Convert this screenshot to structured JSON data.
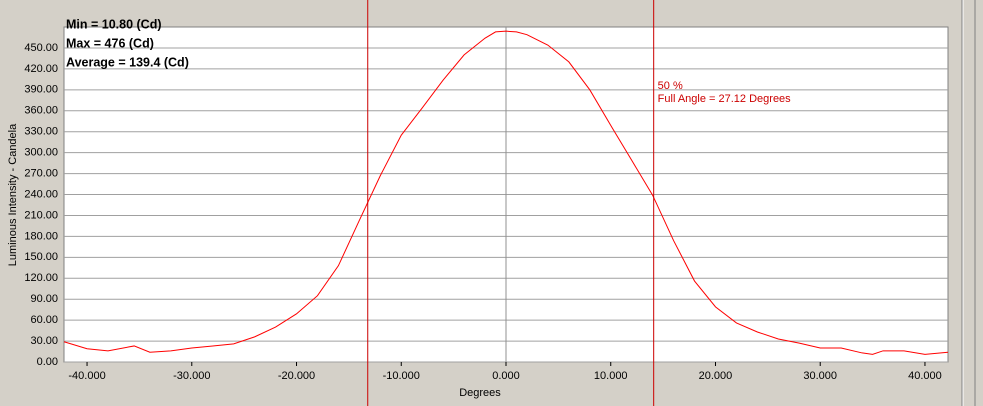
{
  "chart_data": {
    "type": "line",
    "stats": [
      "Min = 10.80 (Cd)",
      "Max = 476 (Cd)",
      "Average = 139.4 (Cd)"
    ],
    "x_label": "Degrees",
    "y_label": "Luminous Intensity - Candela",
    "x": [
      -42.2,
      -40,
      -38,
      -35.5,
      -34,
      -32,
      -30,
      -28,
      -26,
      -24,
      -22,
      -20,
      -18,
      -16,
      -14,
      -12,
      -10,
      -8,
      -6,
      -4,
      -2,
      -1,
      0,
      1,
      2,
      4,
      6,
      8,
      10,
      12,
      14,
      16,
      18,
      20,
      22,
      24,
      26,
      28,
      30,
      32,
      34,
      35,
      36,
      38,
      40,
      42.2
    ],
    "series": [
      {
        "color": "#ff0000",
        "values": [
          29,
          19,
          16,
          23,
          14,
          16,
          20,
          23,
          26,
          36,
          50,
          69,
          95,
          138,
          203,
          267,
          325,
          364,
          404,
          440,
          464,
          473,
          474,
          473,
          469,
          454,
          430,
          390,
          339,
          289,
          239,
          174,
          116,
          79,
          56,
          43,
          33,
          27,
          20,
          20,
          13,
          11,
          16,
          16,
          11,
          14
        ]
      }
    ],
    "xlim": [
      -42.2,
      42.2
    ],
    "ylim": [
      0,
      480
    ],
    "xticks": [
      {
        "value": -40,
        "label": "-40.000"
      },
      {
        "value": -30,
        "label": "-30.000"
      },
      {
        "value": -20,
        "label": "-20.000"
      },
      {
        "value": -10,
        "label": "-10.000"
      },
      {
        "value": 0,
        "label": "0.000"
      },
      {
        "value": 10,
        "label": "10.000"
      },
      {
        "value": 20,
        "label": "20.000"
      },
      {
        "value": 30,
        "label": "30.000"
      },
      {
        "value": 40,
        "label": "40.000"
      }
    ],
    "yticks": [
      {
        "value": 0,
        "label": "0.00"
      },
      {
        "value": 30,
        "label": "30.00"
      },
      {
        "value": 60,
        "label": "60.00"
      },
      {
        "value": 90,
        "label": "90.00"
      },
      {
        "value": 120,
        "label": "120.00"
      },
      {
        "value": 150,
        "label": "150.00"
      },
      {
        "value": 180,
        "label": "180.00"
      },
      {
        "value": 210,
        "label": "210.00"
      },
      {
        "value": 240,
        "label": "240.00"
      },
      {
        "value": 270,
        "label": "270.00"
      },
      {
        "value": 300,
        "label": "300.00"
      },
      {
        "value": 330,
        "label": "330.00"
      },
      {
        "value": 360,
        "label": "360.00"
      },
      {
        "value": 390,
        "label": "390.00"
      },
      {
        "value": 420,
        "label": "420.00"
      },
      {
        "value": 450,
        "label": "450.00"
      }
    ],
    "grid": true,
    "zero_line": true,
    "markers": [
      -13.2,
      14.1
    ],
    "marker_color": "#cc0000",
    "annotations": [
      "50 %",
      "Full Angle = 27.12 Degrees"
    ]
  }
}
